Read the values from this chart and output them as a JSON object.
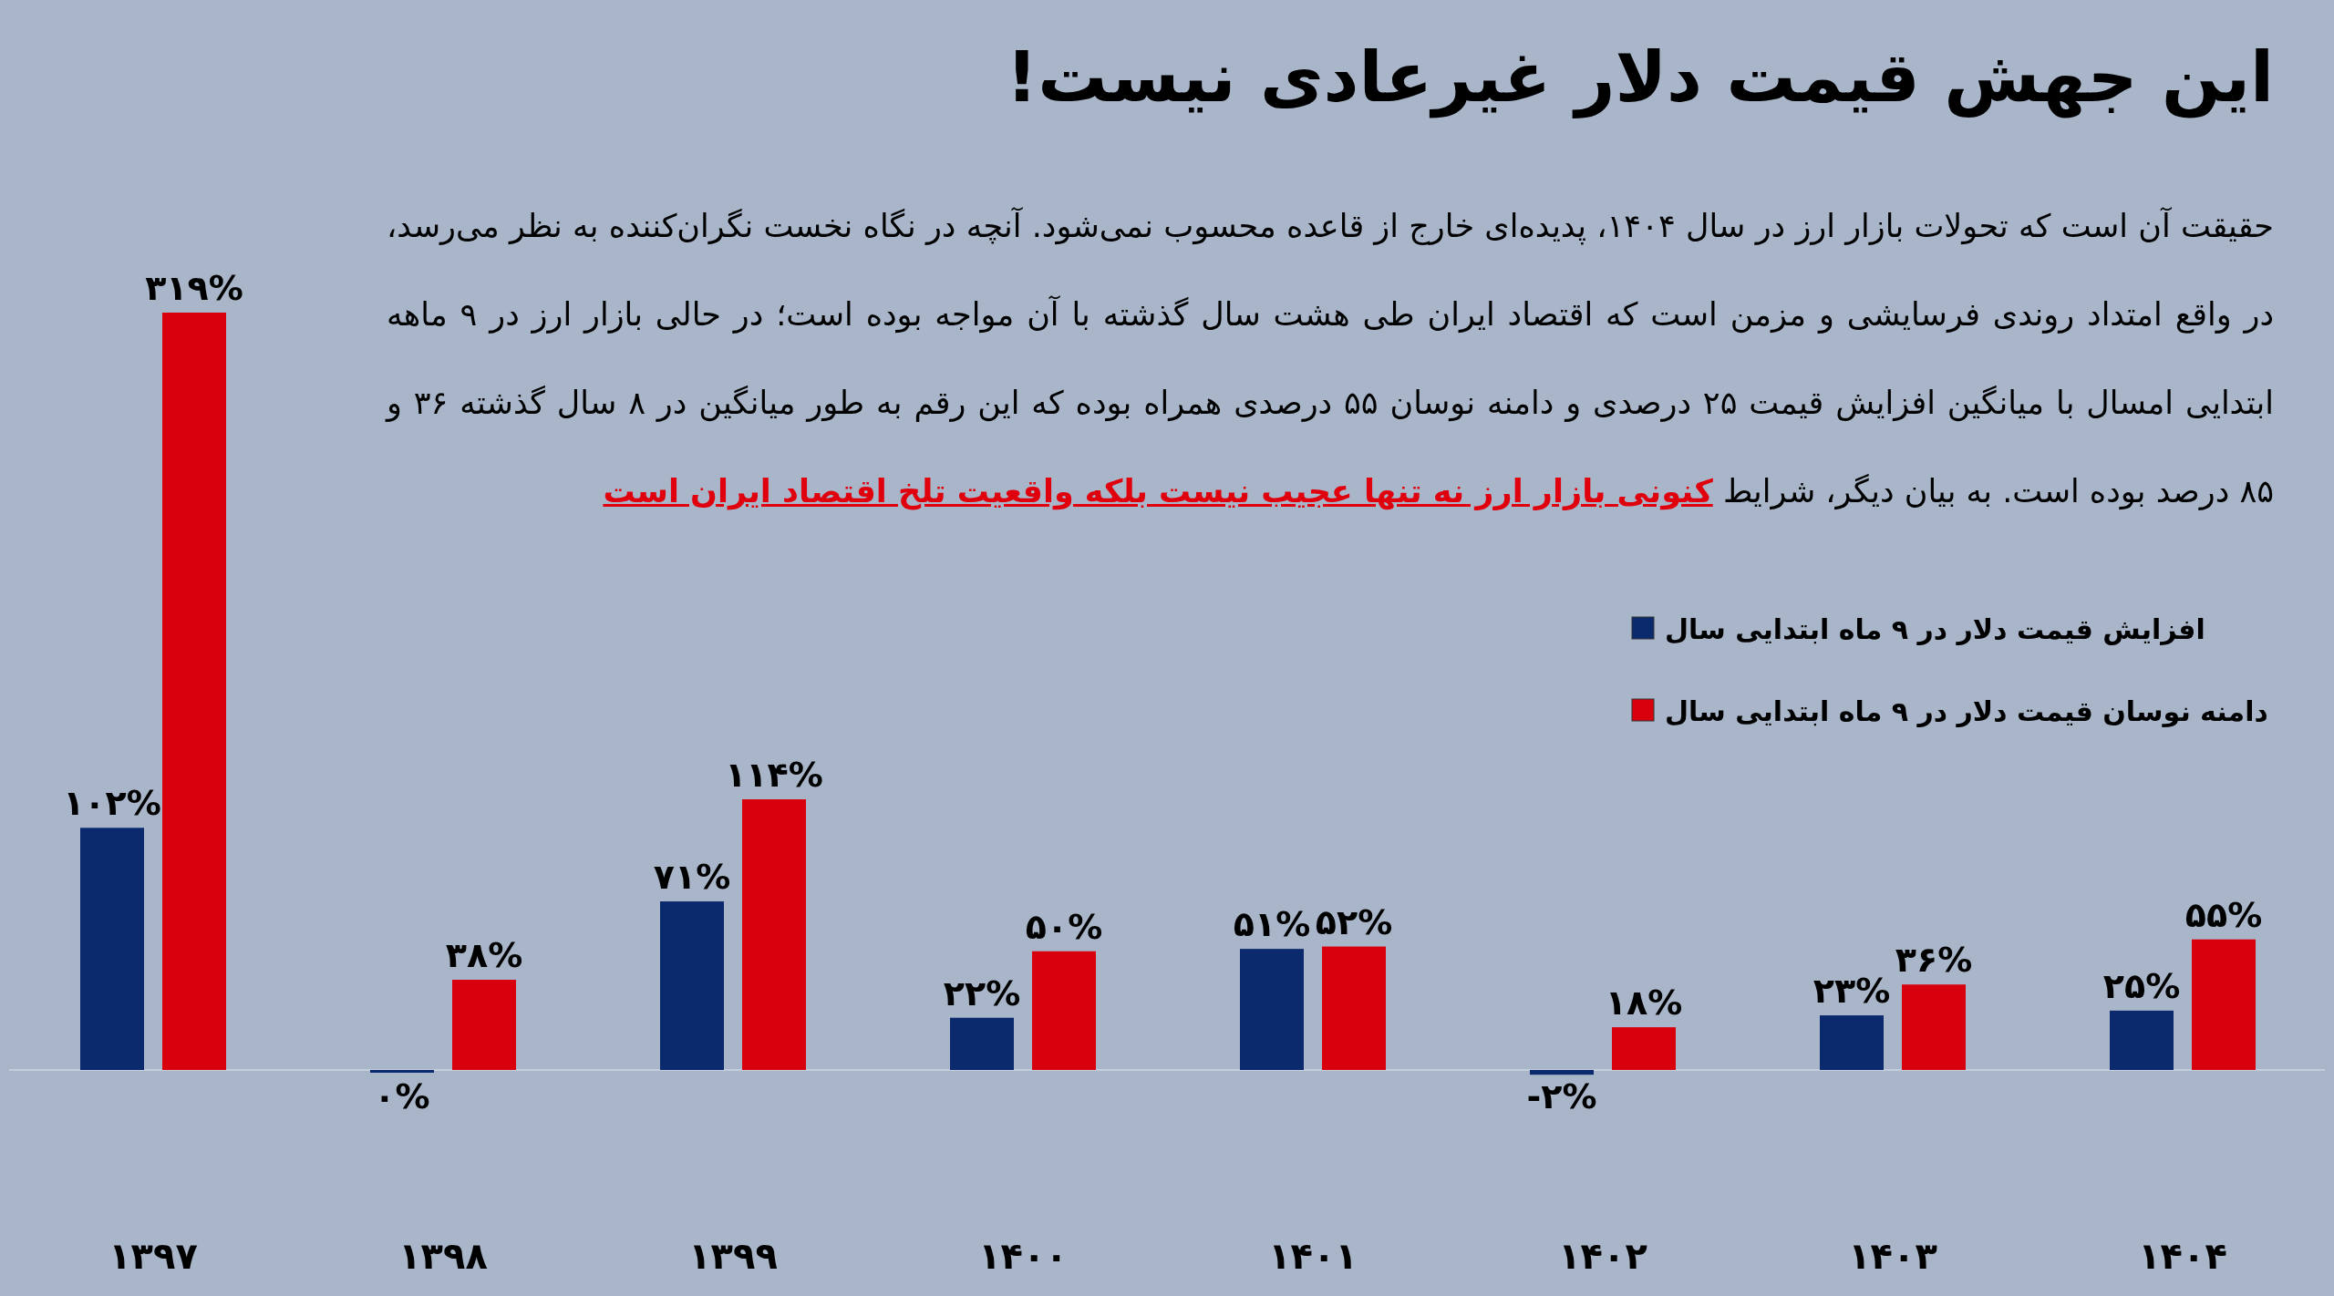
{
  "chart_data": {
    "type": "bar",
    "title": "این جهش قیمت دلار غیرعادی نیست!",
    "subtitle": "حقیقت آن است که تحولات بازار ارز در سال ۱۴۰۴، پدیده‌ای خارج از قاعده محسوب نمی‌شود. آنچه در نگاه نخست نگران‌کننده به نظر می‌رسد، در واقع امتداد روندی فرسایشی و مزمن است که اقتصاد ایران طی هشت سال گذشته با آن مواجه بوده است؛ در حالی بازار ارز در ۹ ماهه ابتدایی امسال با میانگین افزایش قیمت ۲۵ درصدی و دامنه نوسان ۵۵ درصدی همراه بوده که این رقم به طور میانگین در ۸ سال گذشته ۳۶ و ۸۵ درصد بوده است. به بیان دیگر، شرایط **کنونی بازار ارز نه تنها عجیب نیست بلکه واقعیت تلخ اقتصاد ایران است**",
    "categories": [
      "۱۳۹۷",
      "۱۳۹۸",
      "۱۳۹۹",
      "۱۴۰۰",
      "۱۴۰۱",
      "۱۴۰۲",
      "۱۴۰۳",
      "۱۴۰۴"
    ],
    "series": [
      {
        "name": "افزایش قیمت دلار در ۹ ماه ابتدایی سال",
        "color": "#0b2a6e",
        "values": [
          102,
          0,
          71,
          22,
          51,
          -2,
          23,
          25
        ],
        "value_labels": [
          "۱۰۲%",
          "۰%",
          "۷۱%",
          "۲۲%",
          "۵۱%",
          "-۲%",
          "۲۳%",
          "۲۵%"
        ]
      },
      {
        "name": "دامنه نوسان قیمت دلار در ۹ ماه ابتدایی سال",
        "color": "#d9000d",
        "values": [
          319,
          38,
          114,
          50,
          52,
          18,
          36,
          55
        ],
        "value_labels": [
          "۳۱۹%",
          "۳۸%",
          "۱۱۴%",
          "۵۰%",
          "۵۲%",
          "۱۸%",
          "۳۶%",
          "۵۵%"
        ]
      }
    ],
    "legend": "right"
  }
}
